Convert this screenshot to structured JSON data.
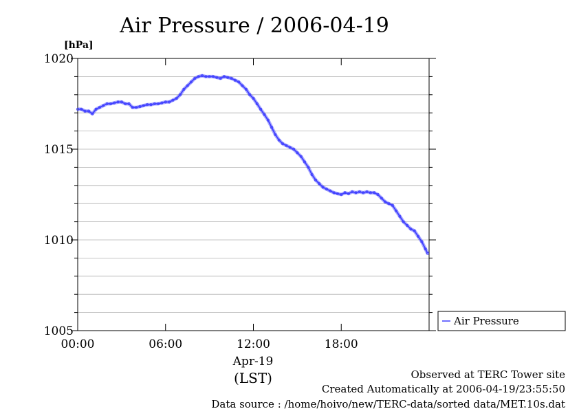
{
  "chart_data": {
    "type": "line",
    "title": "Air Pressure / 2006-04-19",
    "ylabel": "[hPa]",
    "xlabel_date": "Apr-19",
    "xlabel_tz": "(LST)",
    "ylim": [
      1005,
      1020
    ],
    "xlim_hours": [
      0,
      24
    ],
    "y_ticks": [
      "1005",
      "1010",
      "1015",
      "1020"
    ],
    "y_tick_values": [
      1005,
      1010,
      1015,
      1020
    ],
    "y_minor_step": 1,
    "x_ticks": [
      "00:00",
      "06:00",
      "12:00",
      "18:00"
    ],
    "x_tick_values": [
      0,
      6,
      12,
      18
    ],
    "grid": "horizontal",
    "legend_position": "right",
    "series": [
      {
        "name": "Air Pressure",
        "color": "#4040ff",
        "x_hours": [
          0,
          0.25,
          0.5,
          0.75,
          1.0,
          1.25,
          1.5,
          1.75,
          2.0,
          2.25,
          2.5,
          2.75,
          3.0,
          3.25,
          3.5,
          3.75,
          4.0,
          4.25,
          4.5,
          4.75,
          5.0,
          5.25,
          5.5,
          5.75,
          6.0,
          6.25,
          6.5,
          6.75,
          7.0,
          7.25,
          7.5,
          7.75,
          8.0,
          8.25,
          8.5,
          8.75,
          9.0,
          9.25,
          9.5,
          9.75,
          10.0,
          10.25,
          10.5,
          10.75,
          11.0,
          11.25,
          11.5,
          11.75,
          12.0,
          12.25,
          12.5,
          12.75,
          13.0,
          13.25,
          13.5,
          13.75,
          14.0,
          14.25,
          14.5,
          14.75,
          15.0,
          15.25,
          15.5,
          15.75,
          16.0,
          16.25,
          16.5,
          16.75,
          17.0,
          17.25,
          17.5,
          17.75,
          18.0,
          18.25,
          18.5,
          18.75,
          19.0,
          19.25,
          19.5,
          19.75,
          20.0,
          20.25,
          20.5,
          20.75,
          21.0,
          21.25,
          21.5,
          21.75,
          22.0,
          22.25,
          22.5,
          22.75,
          23.0,
          23.25,
          23.5,
          23.75,
          23.9
        ],
        "values": [
          1017.2,
          1017.2,
          1017.1,
          1017.1,
          1016.95,
          1017.2,
          1017.3,
          1017.4,
          1017.5,
          1017.5,
          1017.55,
          1017.6,
          1017.6,
          1017.5,
          1017.5,
          1017.3,
          1017.3,
          1017.35,
          1017.4,
          1017.45,
          1017.45,
          1017.5,
          1017.5,
          1017.55,
          1017.6,
          1017.6,
          1017.7,
          1017.8,
          1018.0,
          1018.3,
          1018.5,
          1018.7,
          1018.9,
          1019.0,
          1019.05,
          1019.0,
          1019.0,
          1019.0,
          1018.95,
          1018.9,
          1019.0,
          1018.95,
          1018.9,
          1018.8,
          1018.7,
          1018.5,
          1018.3,
          1018.0,
          1017.8,
          1017.5,
          1017.2,
          1016.9,
          1016.6,
          1016.2,
          1015.8,
          1015.5,
          1015.3,
          1015.2,
          1015.1,
          1015.0,
          1014.8,
          1014.6,
          1014.3,
          1014.0,
          1013.6,
          1013.3,
          1013.1,
          1012.9,
          1012.8,
          1012.7,
          1012.6,
          1012.55,
          1012.5,
          1012.6,
          1012.55,
          1012.65,
          1012.6,
          1012.65,
          1012.6,
          1012.65,
          1012.6,
          1012.6,
          1012.5,
          1012.3,
          1012.1,
          1012.0,
          1011.9,
          1011.6,
          1011.3,
          1011.0,
          1010.8,
          1010.6,
          1010.5,
          1010.2,
          1009.9,
          1009.5,
          1009.25
        ]
      }
    ]
  },
  "footer": {
    "site": "Observed at TERC Tower site",
    "created": "Created Automatically at 2006-04-19/23:55:50",
    "source": "Data source : /home/hoivo/new/TERC-data/sorted  data/MET.10s.dat"
  }
}
